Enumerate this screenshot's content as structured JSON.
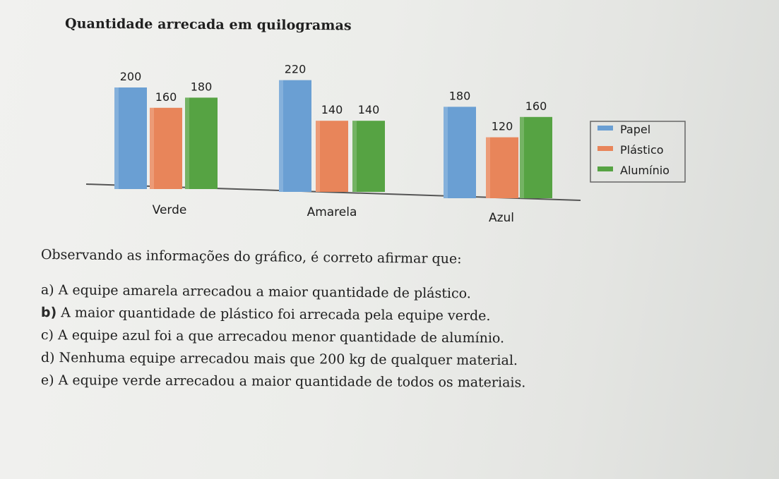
{
  "title": "Quantidade arrecada em quilogramas",
  "question": "Observando as informações do gráfico, é correto afirmar que:",
  "options": [
    {
      "letter": "a)",
      "text": "A equipe amarela arrecadou a maior quantidade de plástico."
    },
    {
      "letter": "b)",
      "text": "A maior quantidade de plástico foi arrecada pela equipe verde."
    },
    {
      "letter": "c)",
      "text": "A equipe azul foi a que arrecadou menor quantidade de alumínio."
    },
    {
      "letter": "d)",
      "text": "Nenhuma equipe arrecadou mais que 200 kg de qualquer material."
    },
    {
      "letter": "e)",
      "text": "A equipe verde arrecadou a maior quantidade de todos os materiais."
    }
  ],
  "colors": {
    "Papel": "#6a9fd3",
    "Plástico": "#e8855a",
    "Alumínio": "#56a343"
  },
  "chart_data": {
    "type": "bar",
    "title": "Quantidade arrecada em quilogramas",
    "categories": [
      "Verde",
      "Amarela",
      "Azul"
    ],
    "series": [
      {
        "name": "Papel",
        "values": [
          200,
          220,
          180
        ]
      },
      {
        "name": "Plástico",
        "values": [
          160,
          140,
          120
        ]
      },
      {
        "name": "Alumínio",
        "values": [
          180,
          140,
          160
        ]
      }
    ],
    "data_labels": true,
    "grid": false,
    "legend": "right"
  }
}
